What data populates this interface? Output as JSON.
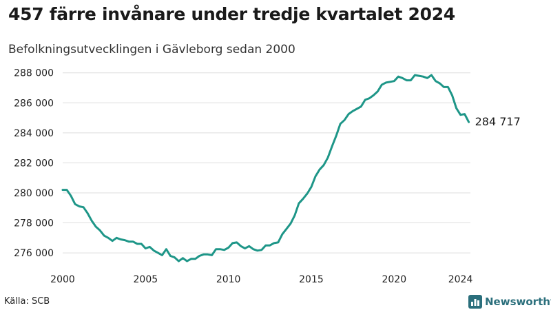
{
  "title": "457 färre invånare under tredje kvartalet 2024",
  "subtitle": "Befolkningsutvecklingen i Gävleborg sedan 2000",
  "source": "Källa: SCB",
  "brand": {
    "name": "Newsworthy",
    "icon": "bar-chart-icon"
  },
  "colors": {
    "line": "#1e9688",
    "grid": "#dddddd",
    "brand": "#2b6f7c"
  },
  "chart_data": {
    "type": "line",
    "title": "457 färre invånare under tredje kvartalet 2024",
    "subtitle": "Befolkningsutvecklingen i Gävleborg sedan 2000",
    "xlabel": "",
    "ylabel": "",
    "xlim": [
      2000,
      2024.6
    ],
    "ylim": [
      275500,
      288400
    ],
    "grid": true,
    "x_ticks": [
      {
        "value": 2000,
        "label": "2000"
      },
      {
        "value": 2005,
        "label": "2005"
      },
      {
        "value": 2010,
        "label": "2010"
      },
      {
        "value": 2015,
        "label": "2015"
      },
      {
        "value": 2020,
        "label": "2020"
      },
      {
        "value": 2024,
        "label": "2024"
      }
    ],
    "y_ticks": [
      {
        "value": 276000,
        "label": "276 000"
      },
      {
        "value": 278000,
        "label": "278 000"
      },
      {
        "value": 280000,
        "label": "280 000"
      },
      {
        "value": 282000,
        "label": "282 000"
      },
      {
        "value": 284000,
        "label": "284 000"
      },
      {
        "value": 286000,
        "label": "286 000"
      },
      {
        "value": 288000,
        "label": "288 000"
      }
    ],
    "end_label": "284 717",
    "series": [
      {
        "x": [
          2000.0,
          2000.25,
          2000.5,
          2000.75,
          2001.0,
          2001.25,
          2001.5,
          2001.75,
          2002.0,
          2002.25,
          2002.5,
          2002.75,
          2003.0,
          2003.25,
          2003.5,
          2003.75,
          2004.0,
          2004.25,
          2004.5,
          2004.75,
          2005.0,
          2005.25,
          2005.5,
          2005.75,
          2006.0,
          2006.25,
          2006.5,
          2006.75,
          2007.0,
          2007.25,
          2007.5,
          2007.75,
          2008.0,
          2008.25,
          2008.5,
          2008.75,
          2009.0,
          2009.25,
          2009.5,
          2009.75,
          2010.0,
          2010.25,
          2010.5,
          2010.75,
          2011.0,
          2011.25,
          2011.5,
          2011.75,
          2012.0,
          2012.25,
          2012.5,
          2012.75,
          2013.0,
          2013.25,
          2013.5,
          2013.75,
          2014.0,
          2014.25,
          2014.5,
          2014.75,
          2015.0,
          2015.25,
          2015.5,
          2015.75,
          2016.0,
          2016.25,
          2016.5,
          2016.75,
          2017.0,
          2017.25,
          2017.5,
          2017.75,
          2018.0,
          2018.25,
          2018.5,
          2018.75,
          2019.0,
          2019.25,
          2019.5,
          2019.75,
          2020.0,
          2020.25,
          2020.5,
          2020.75,
          2021.0,
          2021.25,
          2021.5,
          2021.75,
          2022.0,
          2022.25,
          2022.5,
          2022.75,
          2023.0,
          2023.25,
          2023.5,
          2023.75,
          2024.0,
          2024.25,
          2024.5
        ],
        "values": [
          280200,
          280200,
          279800,
          279250,
          279100,
          279050,
          278650,
          278150,
          277750,
          277500,
          277150,
          277000,
          276800,
          277000,
          276900,
          276850,
          276750,
          276750,
          276600,
          276600,
          276300,
          276400,
          276150,
          276000,
          275850,
          276250,
          275800,
          275700,
          275450,
          275650,
          275450,
          275600,
          275600,
          275800,
          275900,
          275900,
          275850,
          276250,
          276250,
          276200,
          276350,
          276650,
          276700,
          276450,
          276300,
          276450,
          276250,
          276150,
          276200,
          276500,
          276500,
          276650,
          276700,
          277250,
          277600,
          277950,
          278500,
          279300,
          279600,
          279950,
          280400,
          281100,
          281550,
          281850,
          282350,
          283100,
          283800,
          284600,
          284850,
          285250,
          285450,
          285600,
          285750,
          286200,
          286300,
          286500,
          286750,
          287200,
          287350,
          287400,
          287450,
          287750,
          287650,
          287500,
          287500,
          287850,
          287800,
          287750,
          287650,
          287850,
          287450,
          287300,
          287050,
          287050,
          286500,
          285650,
          285200,
          285250,
          284717
        ]
      }
    ]
  }
}
